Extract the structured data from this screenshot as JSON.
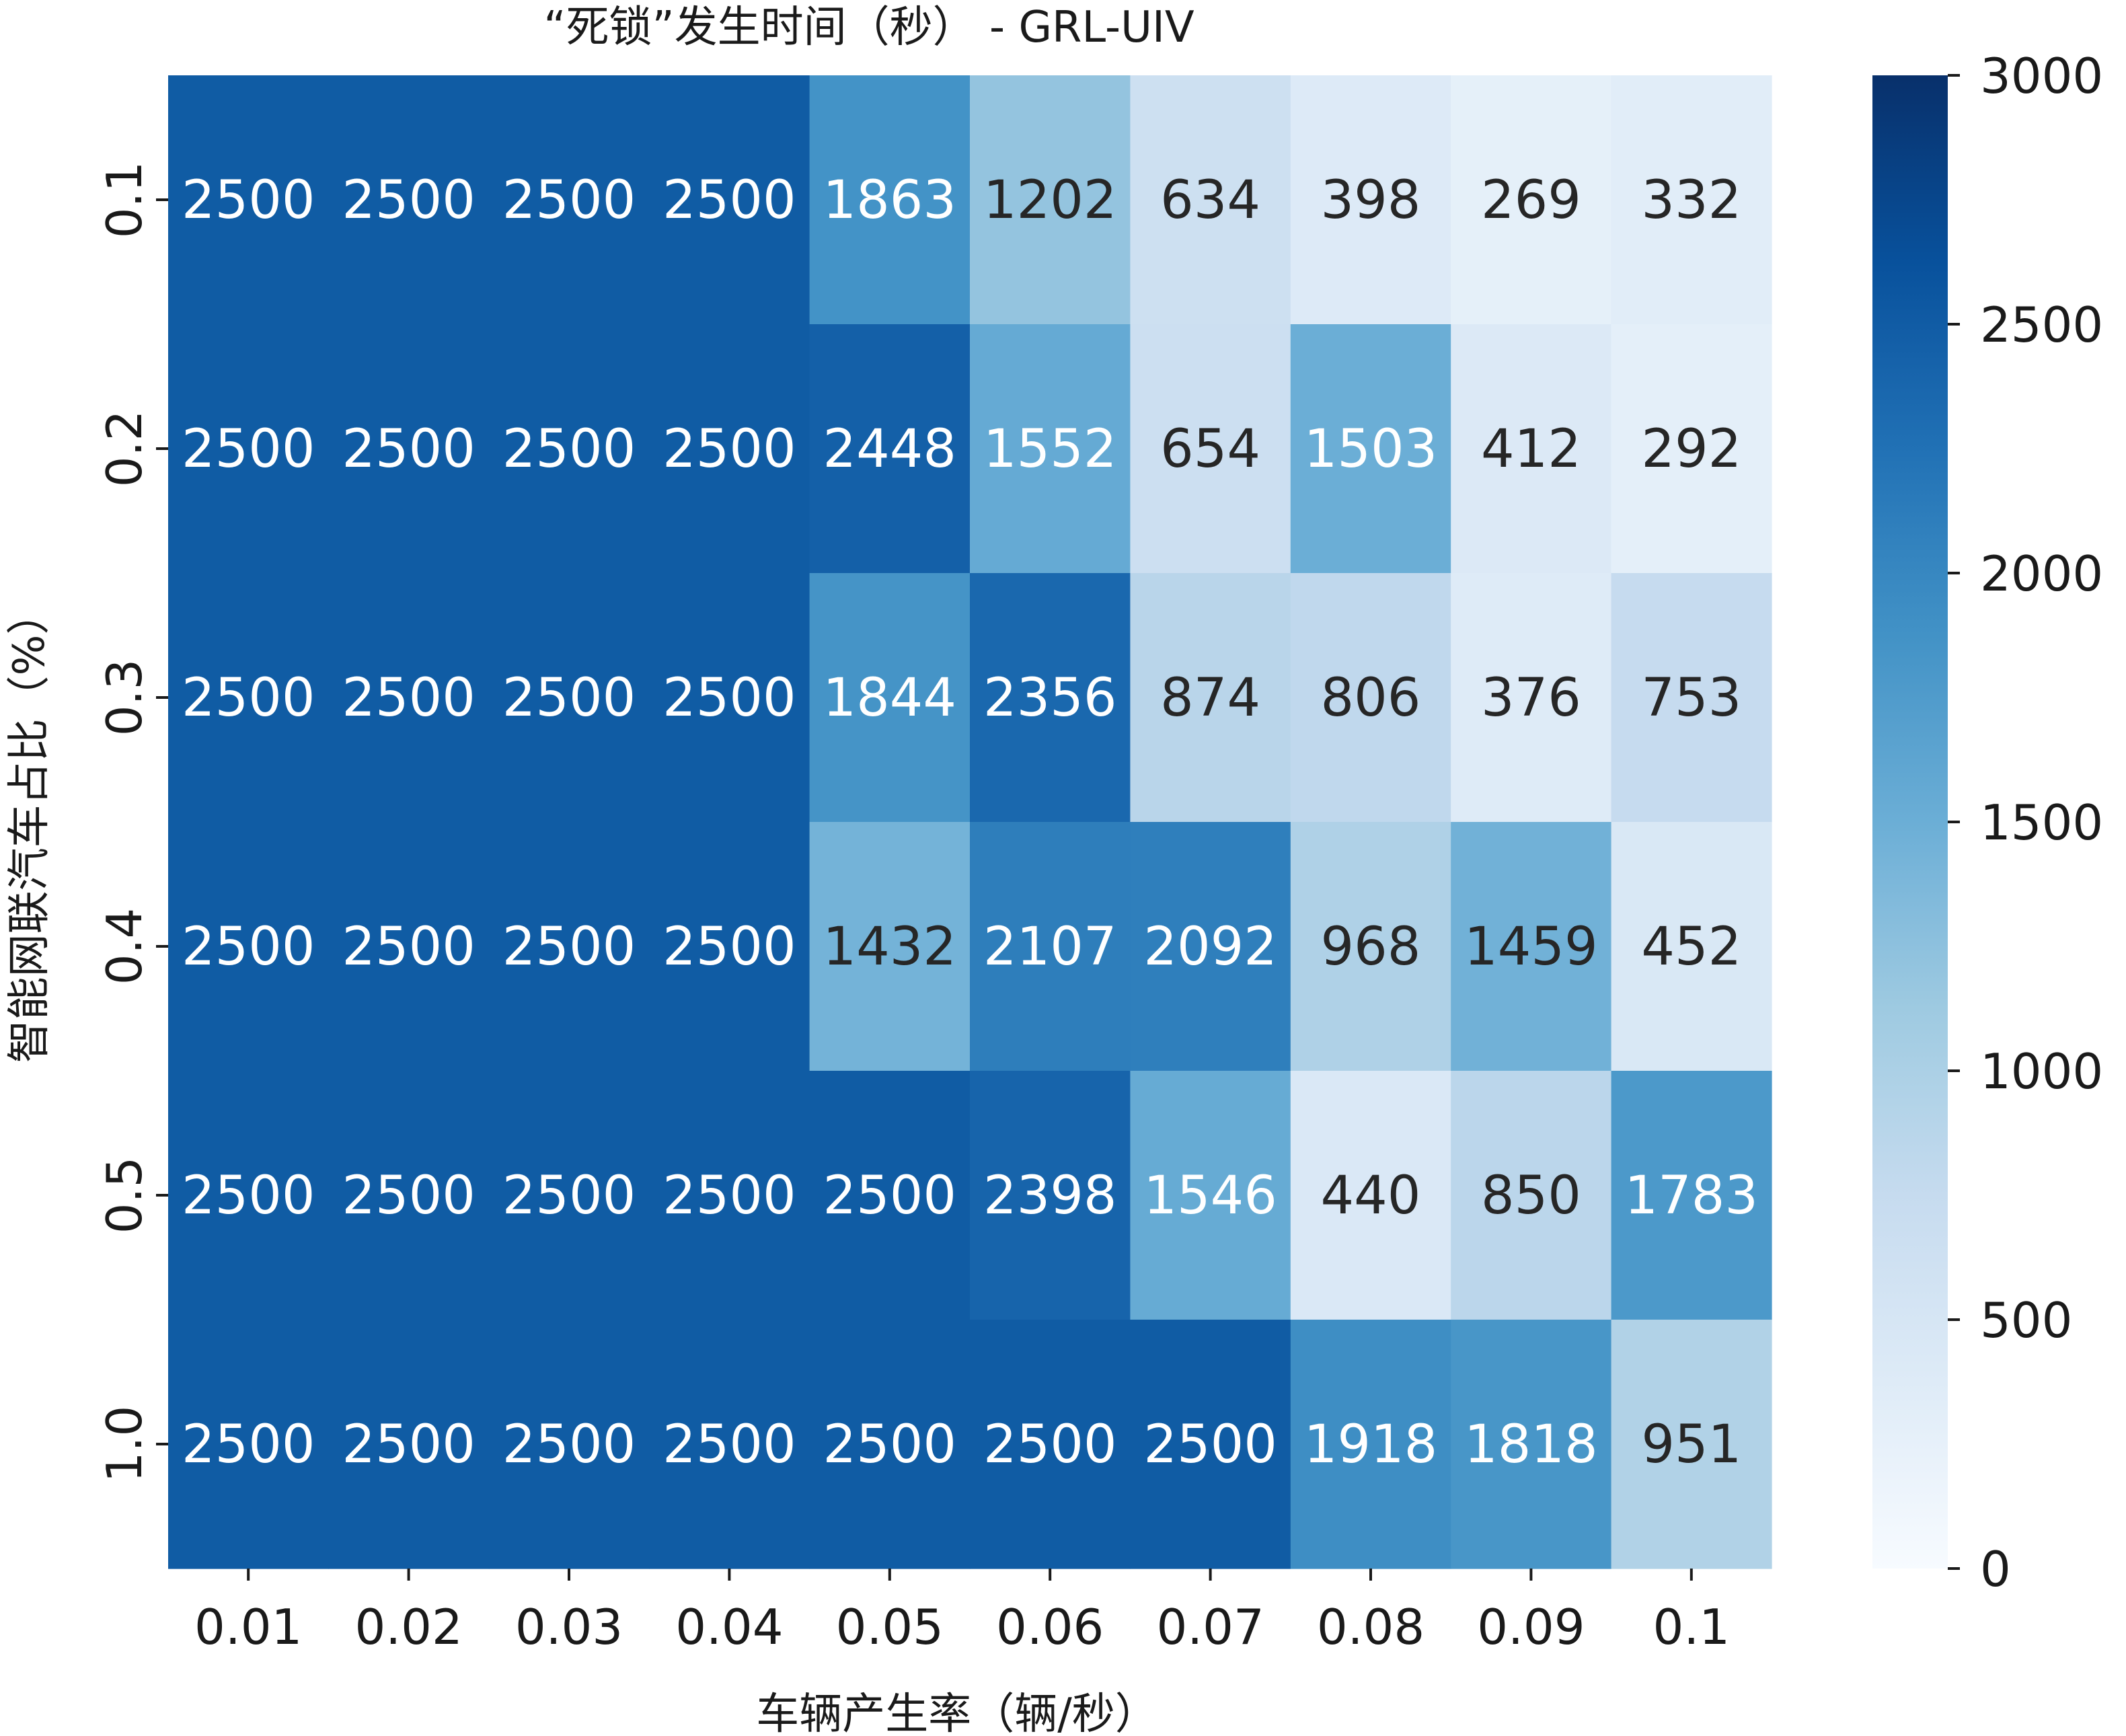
{
  "chart_data": {
    "type": "heatmap",
    "title": "“死锁”发生时间（秒） - GRL-UIV",
    "xlabel": "车辆产生率（辆/秒）",
    "ylabel": "智能网联汽车占比（%）",
    "x": [
      "0.01",
      "0.02",
      "0.03",
      "0.04",
      "0.05",
      "0.06",
      "0.07",
      "0.08",
      "0.09",
      "0.1"
    ],
    "y": [
      "0.1",
      "0.2",
      "0.3",
      "0.4",
      "0.5",
      "1.0"
    ],
    "values": [
      [
        2500,
        2500,
        2500,
        2500,
        1863,
        1202,
        634,
        398,
        269,
        332
      ],
      [
        2500,
        2500,
        2500,
        2500,
        2448,
        1552,
        654,
        1503,
        412,
        292
      ],
      [
        2500,
        2500,
        2500,
        2500,
        1844,
        2356,
        874,
        806,
        376,
        753
      ],
      [
        2500,
        2500,
        2500,
        2500,
        1432,
        2107,
        2092,
        968,
        1459,
        452
      ],
      [
        2500,
        2500,
        2500,
        2500,
        2500,
        2398,
        1546,
        440,
        850,
        1783
      ],
      [
        2500,
        2500,
        2500,
        2500,
        2500,
        2500,
        2500,
        1918,
        1818,
        951
      ]
    ],
    "colorbar": {
      "colormap": "Blues",
      "range": [
        0,
        3000
      ],
      "ticks": [
        "0",
        "500",
        "1000",
        "1500",
        "2000",
        "2500",
        "3000"
      ]
    },
    "annotations": true,
    "grid": false
  }
}
